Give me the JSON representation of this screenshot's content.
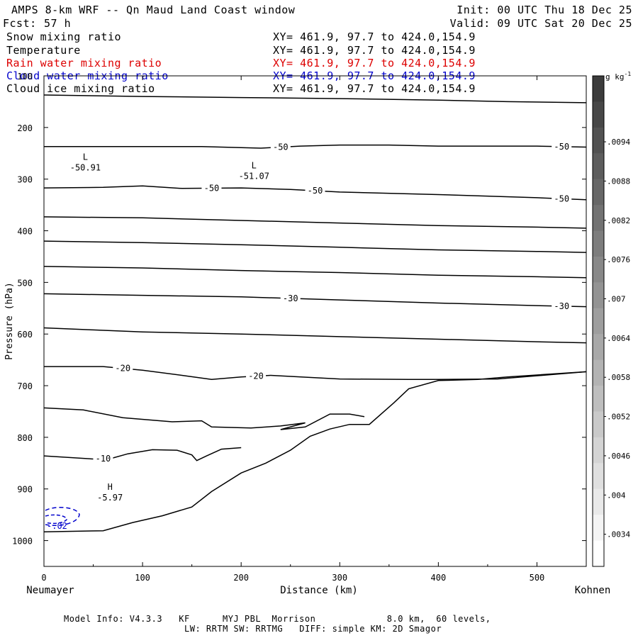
{
  "header": {
    "title": "AMPS 8-km WRF -- Qn Maud Land Coast window",
    "fcst_label": "Fcst:",
    "fcst_value": "57 h",
    "init": "Init: 00 UTC Thu 18 Dec 25",
    "valid": "Valid: 09 UTC Sat 20 Dec 25"
  },
  "fields": [
    {
      "name": "Snow mixing ratio",
      "xy": "XY= 461.9, 97.7 to 424.0,154.9",
      "color": "#000000"
    },
    {
      "name": "Temperature",
      "xy": "XY= 461.9, 97.7 to 424.0,154.9",
      "color": "#000000"
    },
    {
      "name": "Rain water mixing ratio",
      "xy": "XY= 461.9, 97.7 to 424.0,154.9",
      "color": "#dd0000"
    },
    {
      "name": "Cloud water mixing ratio",
      "xy": "XY= 461.9, 97.7 to 424.0,154.9",
      "color": "#0000cc"
    },
    {
      "name": "Cloud ice mixing ratio",
      "xy": "XY= 461.9, 97.7 to 424.0,154.9",
      "color": "#000000"
    }
  ],
  "chart_data": {
    "type": "cross-section contour",
    "xlabel": "Distance (km)",
    "ylabel": "Pressure (hPa)",
    "xlim": [
      0,
      550
    ],
    "ylim": [
      1050,
      100
    ],
    "x_ticks": [
      0,
      100,
      200,
      300,
      400,
      500
    ],
    "y_ticks": [
      100,
      200,
      300,
      400,
      500,
      600,
      700,
      800,
      900,
      1000
    ],
    "left_endpoint": "Neumayer",
    "right_endpoint": "Kohnen",
    "temperature_contours": [
      {
        "label": "",
        "points": [
          [
            0,
            137
          ],
          [
            100,
            140
          ],
          [
            200,
            142
          ],
          [
            300,
            144
          ],
          [
            400,
            147
          ],
          [
            470,
            150
          ],
          [
            550,
            152
          ]
        ]
      },
      {
        "label": "-50",
        "points": [
          [
            0,
            237
          ],
          [
            100,
            237
          ],
          [
            160,
            237
          ],
          [
            220,
            240
          ],
          [
            260,
            236
          ],
          [
            300,
            234
          ],
          [
            350,
            234
          ],
          [
            400,
            236
          ],
          [
            450,
            236
          ],
          [
            500,
            236
          ],
          [
            550,
            238
          ]
        ]
      },
      {
        "label": "-50",
        "points": [
          [
            0,
            317
          ],
          [
            60,
            316
          ],
          [
            100,
            313
          ],
          [
            140,
            318
          ],
          [
            200,
            317
          ],
          [
            250,
            320
          ],
          [
            300,
            325
          ],
          [
            400,
            330
          ],
          [
            500,
            336
          ],
          [
            550,
            340
          ]
        ]
      },
      {
        "label": "",
        "points": [
          [
            0,
            373
          ],
          [
            100,
            375
          ],
          [
            200,
            380
          ],
          [
            300,
            385
          ],
          [
            400,
            390
          ],
          [
            500,
            393
          ],
          [
            550,
            395
          ]
        ]
      },
      {
        "label": "",
        "points": [
          [
            0,
            420
          ],
          [
            100,
            423
          ],
          [
            200,
            427
          ],
          [
            300,
            432
          ],
          [
            400,
            437
          ],
          [
            500,
            440
          ],
          [
            550,
            442
          ]
        ]
      },
      {
        "label": "",
        "points": [
          [
            0,
            469
          ],
          [
            100,
            472
          ],
          [
            200,
            477
          ],
          [
            300,
            481
          ],
          [
            400,
            486
          ],
          [
            500,
            489
          ],
          [
            550,
            491
          ]
        ]
      },
      {
        "label": "-30",
        "points": [
          [
            0,
            522
          ],
          [
            100,
            525
          ],
          [
            200,
            528
          ],
          [
            300,
            534
          ],
          [
            400,
            540
          ],
          [
            500,
            545
          ],
          [
            550,
            547
          ]
        ]
      },
      {
        "label": "",
        "points": [
          [
            0,
            588
          ],
          [
            50,
            592
          ],
          [
            100,
            596
          ],
          [
            200,
            600
          ],
          [
            300,
            605
          ],
          [
            400,
            610
          ],
          [
            500,
            615
          ],
          [
            550,
            617
          ]
        ]
      },
      {
        "label": "-20",
        "points": [
          [
            0,
            663
          ],
          [
            60,
            663
          ],
          [
            100,
            670
          ],
          [
            140,
            680
          ],
          [
            170,
            688
          ],
          [
            200,
            683
          ],
          [
            230,
            680
          ],
          [
            300,
            687
          ],
          [
            370,
            688
          ],
          [
            400,
            688
          ],
          [
            460,
            687
          ],
          [
            550,
            673
          ]
        ]
      },
      {
        "label": "",
        "points": [
          [
            0,
            743
          ],
          [
            40,
            747
          ],
          [
            80,
            762
          ],
          [
            130,
            770
          ],
          [
            160,
            768
          ],
          [
            170,
            780
          ],
          [
            210,
            782
          ],
          [
            240,
            778
          ],
          [
            265,
            772
          ],
          [
            240,
            785
          ],
          [
            265,
            780
          ],
          [
            290,
            755
          ],
          [
            310,
            755
          ],
          [
            325,
            760
          ]
        ]
      },
      {
        "label": "-10",
        "points": [
          [
            0,
            836
          ],
          [
            50,
            842
          ],
          [
            70,
            840
          ],
          [
            85,
            832
          ],
          [
            110,
            824
          ],
          [
            135,
            825
          ],
          [
            150,
            834
          ],
          [
            155,
            845
          ],
          [
            165,
            836
          ],
          [
            180,
            823
          ],
          [
            200,
            820
          ]
        ]
      }
    ],
    "terrain_hPa": [
      [
        0,
        983
      ],
      [
        60,
        981
      ],
      [
        90,
        965
      ],
      [
        120,
        952
      ],
      [
        150,
        935
      ],
      [
        170,
        905
      ],
      [
        200,
        869
      ],
      [
        225,
        850
      ],
      [
        250,
        825
      ],
      [
        270,
        798
      ],
      [
        290,
        784
      ],
      [
        310,
        775
      ],
      [
        330,
        775
      ],
      [
        355,
        733
      ],
      [
        370,
        706
      ],
      [
        400,
        690
      ],
      [
        440,
        688
      ],
      [
        470,
        683
      ],
      [
        550,
        673
      ]
    ],
    "extrema": [
      {
        "type": "L",
        "value": "-50.91",
        "x_km": 42,
        "p_hPa": 263
      },
      {
        "type": "L",
        "value": "-51.07",
        "x_km": 213,
        "p_hPa": 279
      },
      {
        "type": "H",
        "value": "-5.97",
        "x_km": 67,
        "p_hPa": 902
      }
    ],
    "cloud_water_value": "-.02",
    "colorbar": {
      "unit": "g kg",
      "unit_exponent": "-1",
      "tick_labels": [
        ".0094",
        ".0088",
        ".0082",
        ".0076",
        ".007",
        ".0064",
        ".0058",
        ".0052",
        ".0046",
        ".004",
        ".0034"
      ]
    }
  },
  "footer": {
    "line1": "Model Info: V4.3.3   KF      MYJ PBL  Morrison             8.0 km,  60 levels,",
    "line2": "LW: RRTM SW: RRTMG   DIFF: simple KM: 2D Smagor"
  }
}
